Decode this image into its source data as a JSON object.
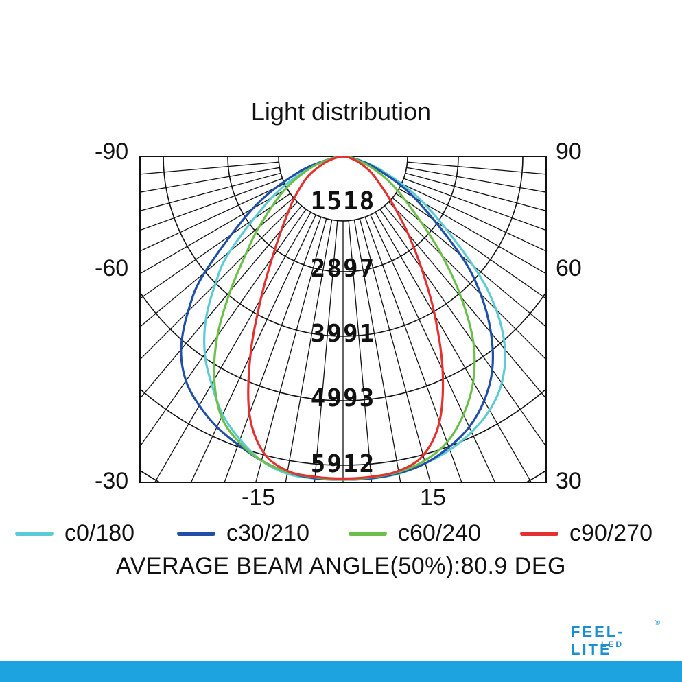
{
  "chart_data": {
    "type": "polar",
    "title": "Light distribution",
    "corner_labels": {
      "top_left": "-90",
      "top_right": "90",
      "mid_left": "-60",
      "mid_right": "60",
      "bottom_left": "-30",
      "bottom_right": "30"
    },
    "bottom_labels": [
      "-15",
      "15"
    ],
    "rings": [
      "1518",
      "2897",
      "3991",
      "4993",
      "5912"
    ],
    "ring_values": [
      1518,
      2897,
      3991,
      4993,
      5912
    ],
    "r_max": 5912,
    "grid": true,
    "angle_unit": "deg",
    "angles": [
      -90,
      -80,
      -70,
      -60,
      -50,
      -45,
      -40,
      -35,
      -30,
      -25,
      -20,
      -15,
      -10,
      -5,
      0,
      5,
      10,
      15,
      20,
      25,
      30,
      35,
      40,
      45,
      50,
      60,
      70,
      80,
      90
    ],
    "series": [
      {
        "name": "c0/180",
        "color": "#5ccbd5",
        "values": [
          0,
          180,
          700,
          1500,
          2700,
          3300,
          3900,
          4400,
          4800,
          5200,
          5500,
          5750,
          5880,
          5900,
          5900,
          5900,
          5880,
          5800,
          5700,
          5550,
          5350,
          5050,
          4600,
          3950,
          3100,
          1700,
          750,
          200,
          0
        ]
      },
      {
        "name": "c30/210",
        "color": "#1f4fa8",
        "values": [
          0,
          220,
          900,
          1900,
          3300,
          4000,
          4600,
          5000,
          5250,
          5450,
          5600,
          5750,
          5850,
          5900,
          5900,
          5900,
          5870,
          5800,
          5650,
          5450,
          5150,
          4750,
          4200,
          3550,
          2800,
          1500,
          650,
          180,
          0
        ]
      },
      {
        "name": "c60/240",
        "color": "#6cc04a",
        "values": [
          0,
          200,
          650,
          1250,
          2000,
          2500,
          3200,
          4000,
          4700,
          5250,
          5550,
          5750,
          5850,
          5880,
          5900,
          5880,
          5850,
          5750,
          5550,
          5200,
          4750,
          4150,
          3350,
          2550,
          1850,
          1050,
          500,
          150,
          0
        ]
      },
      {
        "name": "c90/270",
        "color": "#e53030",
        "values": [
          0,
          120,
          380,
          750,
          1150,
          1400,
          1750,
          2250,
          3000,
          4000,
          5000,
          5600,
          5830,
          5870,
          5880,
          5870,
          5830,
          5650,
          5150,
          4300,
          3350,
          2500,
          1850,
          1350,
          1000,
          600,
          300,
          100,
          0
        ]
      }
    ]
  },
  "footer": {
    "beam_angle": "AVERAGE BEAM ANGLE(50%):80.9  DEG"
  },
  "brand": {
    "logo_text": "FEEL-LITE",
    "logo_sub": "LED",
    "reg": "®",
    "color": "#1b8fd0",
    "bar_color": "#1da3e0"
  }
}
